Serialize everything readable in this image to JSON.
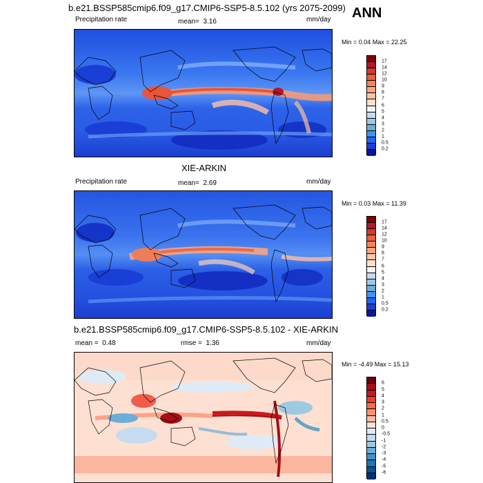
{
  "header": {
    "title": "b.e21.BSSP585cmip6.f09_g17.CMIP6-SSP5-8.5.102 (yrs 2075-2099)",
    "season": "ANN"
  },
  "panels": [
    {
      "id": "model",
      "title": "",
      "left_label": "Precipitation rate",
      "mid_label": "mean=",
      "mid_value": "3.16",
      "units": "mm/day",
      "stats": "Min =  0.04 Max =  22.25",
      "colorbar": {
        "labels": [
          "17",
          "14",
          "12",
          "10",
          "9",
          "8",
          "7",
          "6",
          "5",
          "4",
          "3",
          "2",
          "1",
          "0.5",
          "0.2"
        ],
        "colors": [
          "#7f0000",
          "#b2182b",
          "#d6392e",
          "#ea5f3d",
          "#f4845b",
          "#f7a582",
          "#fac4a6",
          "#fde0cc",
          "#f5f5f5",
          "#c6dbef",
          "#9ecae1",
          "#6baed6",
          "#4292f6",
          "#2166f0",
          "#1a3fd6",
          "#08179a"
        ]
      }
    },
    {
      "id": "obs",
      "title": "XIE-ARKIN",
      "left_label": "Precipitation rate",
      "mid_label": "mean=",
      "mid_value": "2.69",
      "units": "mm/day",
      "stats": "Min =  0.03 Max =  11.39",
      "colorbar": {
        "labels": [
          "17",
          "14",
          "12",
          "10",
          "9",
          "8",
          "7",
          "6",
          "5",
          "4",
          "3",
          "2",
          "1",
          "0.5",
          "0.2"
        ],
        "colors": [
          "#7f0000",
          "#b2182b",
          "#d6392e",
          "#ea5f3d",
          "#f4845b",
          "#f7a582",
          "#fac4a6",
          "#fde0cc",
          "#f5f5f5",
          "#c6dbef",
          "#9ecae1",
          "#6baed6",
          "#4292f6",
          "#2166f0",
          "#1a3fd6",
          "#08179a"
        ]
      }
    },
    {
      "id": "diff",
      "title": "b.e21.BSSP585cmip6.f09_g17.CMIP6-SSP5-8.5.102 - XIE-ARKIN",
      "left_label": "mean =",
      "left_value": "0.48",
      "mid_label": "rmse =",
      "mid_value": "1.36",
      "units": "mm/day",
      "stats": "Min =  -4.49 Max =  15.13",
      "colorbar": {
        "labels": [
          "6",
          "5",
          "4",
          "3",
          "2",
          "1",
          "0.5",
          "0",
          "-0.5",
          "-1",
          "-2",
          "-3",
          "-4",
          "-5",
          "-6"
        ],
        "colors": [
          "#67000d",
          "#a50f15",
          "#cb181d",
          "#ef3b2c",
          "#fb6a4a",
          "#fc9272",
          "#fcbba1",
          "#fee0d2",
          "#deebf7",
          "#c6dbef",
          "#9ecae1",
          "#6baed6",
          "#4292c6",
          "#2171b5",
          "#08519c",
          "#08306b"
        ]
      }
    }
  ]
}
